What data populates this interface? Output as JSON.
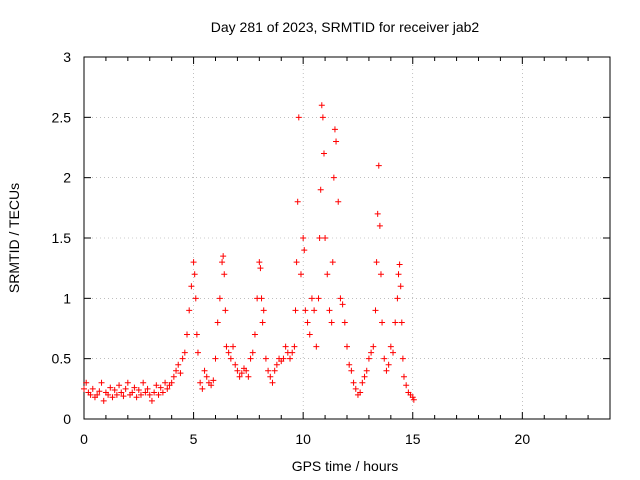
{
  "chart_data": {
    "type": "scatter",
    "title": "Day 281 of 2023, SRMTID for receiver jab2",
    "xlabel": "GPS time / hours",
    "ylabel": "SRMTID / TECUs",
    "xlim": [
      0,
      24
    ],
    "ylim": [
      0,
      3
    ],
    "xticks": [
      "0",
      "5",
      "10",
      "15",
      "20"
    ],
    "xtick_values": [
      0,
      5,
      10,
      15,
      20
    ],
    "yticks": [
      "0",
      "0.5",
      "1",
      "1.5",
      "2",
      "2.5",
      "3"
    ],
    "ytick_values": [
      0,
      0.5,
      1,
      1.5,
      2,
      2.5,
      3
    ],
    "grid": true,
    "marker": "+",
    "series": [
      {
        "name": "SRMTID",
        "color": "#ff0000",
        "x": [
          0.0,
          0.1,
          0.2,
          0.3,
          0.4,
          0.5,
          0.6,
          0.7,
          0.8,
          0.9,
          1.0,
          1.1,
          1.2,
          1.3,
          1.4,
          1.5,
          1.6,
          1.7,
          1.8,
          1.9,
          2.0,
          2.1,
          2.2,
          2.3,
          2.4,
          2.5,
          2.6,
          2.7,
          2.8,
          2.9,
          3.0,
          3.1,
          3.2,
          3.3,
          3.4,
          3.5,
          3.6,
          3.7,
          3.8,
          3.9,
          4.0,
          4.1,
          4.2,
          4.3,
          4.4,
          4.5,
          4.6,
          4.7,
          4.8,
          4.9,
          5.0,
          5.05,
          5.1,
          5.15,
          5.2,
          5.3,
          5.4,
          5.5,
          5.6,
          5.7,
          5.8,
          5.9,
          6.0,
          6.1,
          6.2,
          6.3,
          6.35,
          6.4,
          6.45,
          6.5,
          6.6,
          6.7,
          6.8,
          6.9,
          7.0,
          7.1,
          7.2,
          7.3,
          7.4,
          7.5,
          7.6,
          7.7,
          7.8,
          7.9,
          8.0,
          8.05,
          8.1,
          8.15,
          8.2,
          8.3,
          8.4,
          8.5,
          8.6,
          8.7,
          8.8,
          8.9,
          9.0,
          9.1,
          9.2,
          9.3,
          9.4,
          9.5,
          9.6,
          9.65,
          9.7,
          9.75,
          9.8,
          9.9,
          10.0,
          10.05,
          10.1,
          10.2,
          10.3,
          10.4,
          10.5,
          10.6,
          10.7,
          10.75,
          10.8,
          10.85,
          10.9,
          10.95,
          11.0,
          11.1,
          11.2,
          11.3,
          11.35,
          11.4,
          11.45,
          11.5,
          11.6,
          11.7,
          11.8,
          11.9,
          12.0,
          12.1,
          12.2,
          12.3,
          12.4,
          12.5,
          12.6,
          12.7,
          12.8,
          12.9,
          13.0,
          13.1,
          13.2,
          13.3,
          13.35,
          13.4,
          13.45,
          13.5,
          13.55,
          13.6,
          13.7,
          13.8,
          13.9,
          14.0,
          14.1,
          14.2,
          14.3,
          14.35,
          14.4,
          14.45,
          14.5,
          14.55,
          14.6,
          14.7,
          14.8,
          14.9,
          15.0,
          15.05
        ],
        "y": [
          0.25,
          0.3,
          0.22,
          0.2,
          0.25,
          0.18,
          0.2,
          0.23,
          0.3,
          0.15,
          0.22,
          0.2,
          0.26,
          0.18,
          0.24,
          0.2,
          0.28,
          0.22,
          0.19,
          0.25,
          0.3,
          0.2,
          0.22,
          0.26,
          0.18,
          0.24,
          0.2,
          0.3,
          0.22,
          0.25,
          0.2,
          0.15,
          0.22,
          0.28,
          0.2,
          0.26,
          0.22,
          0.3,
          0.25,
          0.28,
          0.3,
          0.35,
          0.4,
          0.45,
          0.38,
          0.5,
          0.55,
          0.7,
          0.9,
          1.1,
          1.3,
          1.2,
          1.0,
          0.7,
          0.55,
          0.3,
          0.25,
          0.4,
          0.35,
          0.3,
          0.28,
          0.32,
          0.5,
          0.8,
          1.0,
          1.3,
          1.35,
          1.2,
          0.9,
          0.6,
          0.55,
          0.5,
          0.6,
          0.45,
          0.4,
          0.35,
          0.38,
          0.42,
          0.4,
          0.35,
          0.5,
          0.55,
          0.7,
          1.0,
          1.3,
          1.25,
          1.0,
          0.8,
          0.9,
          0.5,
          0.4,
          0.35,
          0.3,
          0.4,
          0.45,
          0.5,
          0.48,
          0.5,
          0.6,
          0.55,
          0.5,
          0.55,
          0.6,
          0.9,
          1.3,
          1.8,
          2.5,
          1.2,
          1.5,
          1.4,
          0.9,
          0.8,
          0.7,
          1.0,
          0.9,
          0.6,
          1.0,
          1.5,
          1.9,
          2.6,
          2.5,
          2.2,
          1.5,
          1.2,
          0.9,
          0.8,
          1.3,
          2.0,
          2.4,
          2.3,
          1.8,
          1.0,
          0.95,
          0.8,
          0.6,
          0.45,
          0.4,
          0.3,
          0.25,
          0.2,
          0.22,
          0.3,
          0.35,
          0.4,
          0.5,
          0.55,
          0.6,
          0.9,
          1.3,
          1.7,
          2.1,
          1.6,
          1.2,
          0.8,
          0.5,
          0.4,
          0.45,
          0.6,
          0.55,
          0.8,
          1.0,
          1.2,
          1.28,
          1.1,
          0.8,
          0.5,
          0.35,
          0.28,
          0.22,
          0.2,
          0.18,
          0.16
        ]
      }
    ]
  }
}
